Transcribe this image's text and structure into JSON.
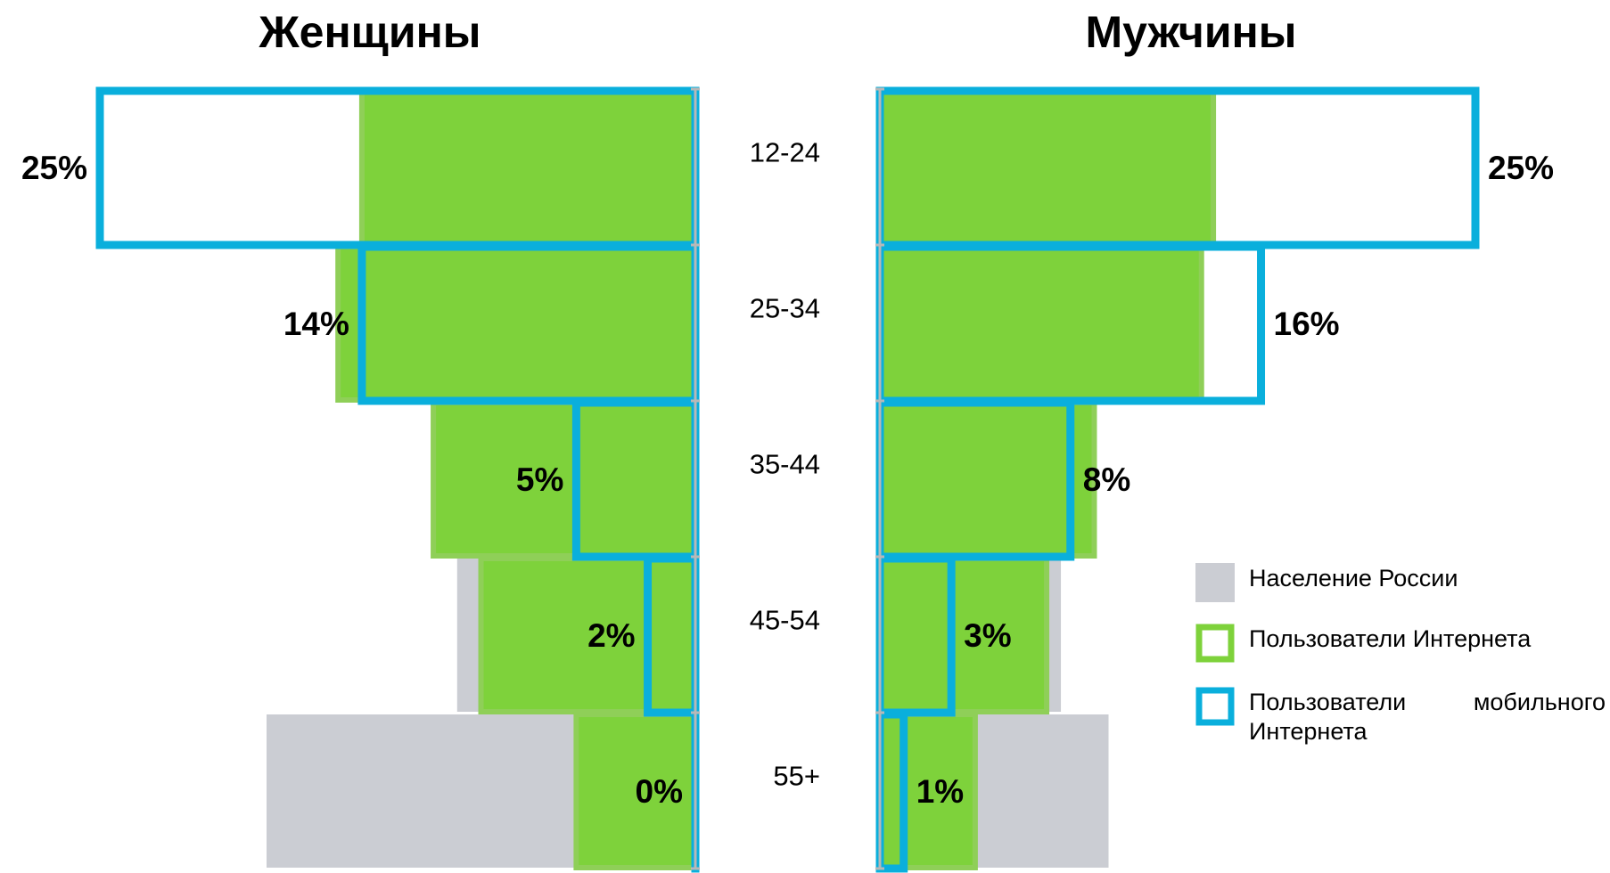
{
  "chart_data": {
    "type": "bar",
    "orientation": "horizontal",
    "categories": [
      "12-24",
      "25-34",
      "35-44",
      "45-54",
      "55+"
    ],
    "xlim": [
      0,
      25
    ],
    "legend": [
      {
        "name": "Население России",
        "color": "#cbcdd3",
        "style": "fill"
      },
      {
        "name": "Пользователи Интернета",
        "color": "#7ed23b",
        "style": "fill"
      },
      {
        "name": "Пользователи мобильного Интернета",
        "color": "#0aafdc",
        "style": "outline"
      }
    ],
    "panels": [
      {
        "title": "Женщины",
        "direction": "left",
        "series": [
          {
            "values": [
              9,
              9,
              8,
              10,
              18
            ]
          },
          {
            "values": [
              14,
              15,
              11,
              9,
              5
            ]
          },
          {
            "values": [
              25,
              14,
              5,
              2,
              0
            ],
            "value_labels": [
              "25%",
              "14%",
              "5%",
              "2%",
              "0%"
            ]
          }
        ]
      },
      {
        "title": "Мужчины",
        "direction": "right",
        "series": [
          {
            "values": [
              9,
              9,
              8,
              7.6,
              9.6
            ]
          },
          {
            "values": [
              14,
              13.5,
              9,
              7,
              4
            ]
          },
          {
            "values": [
              25,
              16,
              8,
              3,
              1
            ],
            "value_labels": [
              "25%",
              "16%",
              "8%",
              "3%",
              "1%"
            ]
          }
        ]
      }
    ]
  }
}
